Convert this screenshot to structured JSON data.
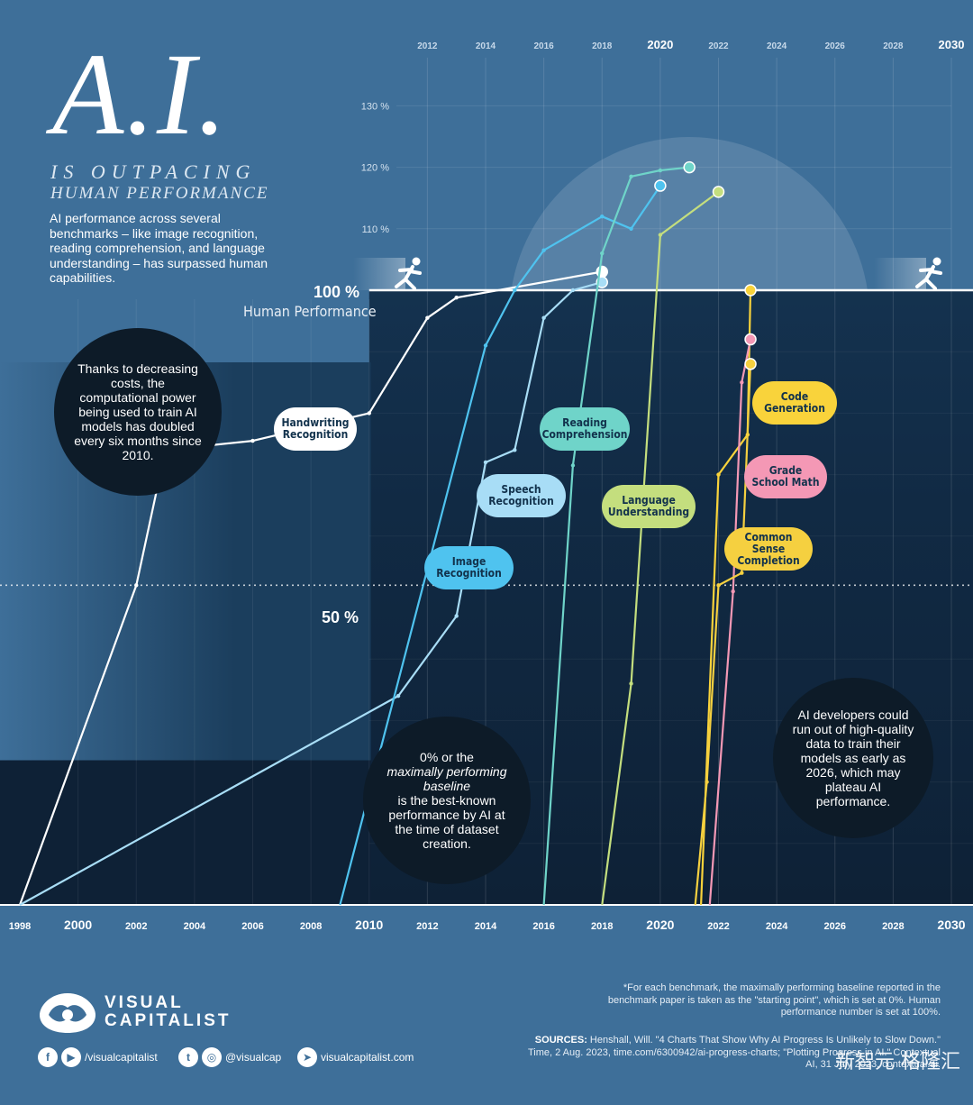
{
  "header": {
    "title_main": "A.I.",
    "title_line1": "IS OUTPACING",
    "title_line2": "HUMAN PERFORMANCE",
    "intro": "AI performance across several benchmarks – like image recognition, reading comprehension, and language understanding – has surpassed human capabilities."
  },
  "reference": {
    "human_pct": "100 %",
    "human_label": "Human Performance",
    "half_pct": "50 %"
  },
  "bubbles": {
    "compute_note": "Thanks to decreasing costs, the computational power being used to train AI models has doubled every six months since 2010.",
    "baseline_note_a": "0% or the",
    "baseline_note_b": "maximally performing baseline",
    "baseline_note_c": "is the best-known performance by AI at the time of dataset creation.",
    "data_note": "AI developers could run out of high-quality data to train their models as early as 2026, which may plateau AI performance."
  },
  "chart_data": {
    "type": "line",
    "title": "A.I. IS OUTPACING HUMAN PERFORMANCE",
    "xlabel": "",
    "ylabel": "",
    "xlim": [
      1998,
      2030
    ],
    "ylim": [
      0,
      135
    ],
    "bottom_ticks": [
      "1998",
      "2000",
      "2002",
      "2004",
      "2006",
      "2008",
      "2010",
      "2012",
      "2014",
      "2016",
      "2018",
      "2020",
      "2022",
      "2024",
      "2026",
      "2028",
      "2030"
    ],
    "top_ticks": [
      "2012",
      "2014",
      "2016",
      "2018",
      "2020",
      "2022",
      "2024",
      "2026",
      "2028",
      "2030"
    ],
    "y_ticks_upper": [
      "110 %",
      "120 %",
      "130 %"
    ],
    "human_level": 100,
    "series": [
      {
        "name": "Handwriting Recognition",
        "color": "#ffffff",
        "points": [
          [
            1998,
            0
          ],
          [
            2002,
            52
          ],
          [
            2003,
            74
          ],
          [
            2006,
            75.5
          ],
          [
            2010,
            80
          ],
          [
            2012,
            95.5
          ],
          [
            2013,
            98.8
          ],
          [
            2018,
            103
          ]
        ]
      },
      {
        "name": "Speech Recognition",
        "color": "#a8ddf6",
        "points": [
          [
            1998,
            0
          ],
          [
            2011,
            34
          ],
          [
            2013,
            47
          ],
          [
            2014,
            72
          ],
          [
            2015,
            74
          ],
          [
            2016,
            95.5
          ],
          [
            2017,
            100
          ],
          [
            2018,
            101.3
          ]
        ]
      },
      {
        "name": "Image Recognition",
        "color": "#4fc3ef",
        "points": [
          [
            2009,
            0
          ],
          [
            2014,
            91
          ],
          [
            2015,
            100
          ],
          [
            2016,
            106.5
          ],
          [
            2018,
            112
          ],
          [
            2019,
            110
          ],
          [
            2020,
            117
          ]
        ]
      },
      {
        "name": "Reading Comprehension",
        "color": "#6fd4c9",
        "points": [
          [
            2016,
            0
          ],
          [
            2017,
            71.5
          ],
          [
            2018,
            106
          ],
          [
            2019,
            118.5
          ],
          [
            2020,
            119.5
          ],
          [
            2021,
            120
          ]
        ]
      },
      {
        "name": "Language Understanding",
        "color": "#c4de7e",
        "points": [
          [
            2018,
            0
          ],
          [
            2019,
            36
          ],
          [
            2020,
            109
          ],
          [
            2022,
            116
          ]
        ]
      },
      {
        "name": "Code Generation",
        "color": "#f9d33b",
        "points": [
          [
            2021.4,
            0
          ],
          [
            2022,
            70
          ],
          [
            2023,
            76.5
          ],
          [
            2023.1,
            100
          ]
        ]
      },
      {
        "name": "Grade School Math",
        "color": "#f498b5",
        "points": [
          [
            2021.7,
            0
          ],
          [
            2022.5,
            51
          ],
          [
            2022.8,
            85
          ],
          [
            2023.1,
            92
          ]
        ]
      },
      {
        "name": "Common Sense Completion",
        "color": "#f5d040",
        "points": [
          [
            2021.2,
            0
          ],
          [
            2021.6,
            20
          ],
          [
            2022,
            52
          ],
          [
            2022.8,
            54
          ],
          [
            2023.1,
            88
          ]
        ]
      }
    ],
    "annotations": {
      "dashed_line_pct": 52
    }
  },
  "pills": [
    {
      "label": "Handwriting Recognition",
      "color": "#ffffff"
    },
    {
      "label": "Speech Recognition",
      "color": "#a8ddf6"
    },
    {
      "label": "Image Recognition",
      "color": "#4fc3ef"
    },
    {
      "label": "Reading Comprehension",
      "color": "#6fd4c9"
    },
    {
      "label": "Language Understanding",
      "color": "#c4de7e"
    },
    {
      "label": "Code Generation",
      "color": "#f9d33b"
    },
    {
      "label": "Grade School Math",
      "color": "#f498b5"
    },
    {
      "label": "Common Sense Completion",
      "color": "#f5d040"
    }
  ],
  "footer": {
    "brand_line1": "VISUAL",
    "brand_line2": "CAPITALIST",
    "footnote": "*For each benchmark, the maximally performing baseline reported in the benchmark paper is taken as the \"starting point\", which is set at 0%. Human performance number is set at 100%.",
    "sources_label": "SOURCES:",
    "sources_text": "Henshall, Will. \"4 Charts That Show Why AI Progress Is Unlikely to Slow Down.\" Time, 2 Aug. 2023, time.com/6300942/ai-progress-charts; \"Plotting Progress in AI.\" Contextual AI, 31 July 2023, contextual.ai.",
    "social_fb_yt": "/visualcapitalist",
    "social_tw_ig": "@visualcap",
    "website": "visualcapitalist.com",
    "watermark": "新智元 格隆汇"
  }
}
